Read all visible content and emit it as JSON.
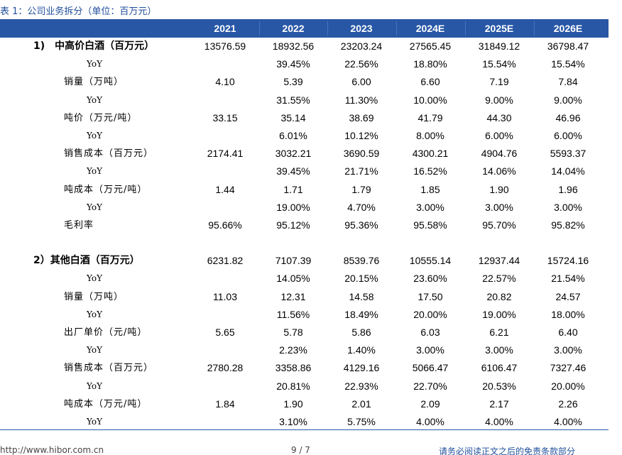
{
  "caption": "表 1：公司业务拆分（单位：百万元）",
  "columns": [
    "2021",
    "2022",
    "2023",
    "2024E",
    "2025E",
    "2026E"
  ],
  "rows": [
    {
      "label": "1)　中高价白酒（百万元）",
      "kind": "section",
      "values": [
        "13576.59",
        "18932.56",
        "23203.24",
        "27565.45",
        "31849.12",
        "36798.47"
      ]
    },
    {
      "label": "YoY",
      "kind": "yoy",
      "values": [
        "",
        "39.45%",
        "22.56%",
        "18.80%",
        "15.54%",
        "15.54%"
      ]
    },
    {
      "label": "销量（万吨）",
      "kind": "sub",
      "values": [
        "4.10",
        "5.39",
        "6.00",
        "6.60",
        "7.19",
        "7.84"
      ]
    },
    {
      "label": "YoY",
      "kind": "yoy",
      "values": [
        "",
        "31.55%",
        "11.30%",
        "10.00%",
        "9.00%",
        "9.00%"
      ]
    },
    {
      "label": "吨价（万元/吨）",
      "kind": "sub",
      "values": [
        "33.15",
        "35.14",
        "38.69",
        "41.79",
        "44.30",
        "46.96"
      ]
    },
    {
      "label": "YoY",
      "kind": "yoy",
      "values": [
        "",
        "6.01%",
        "10.12%",
        "8.00%",
        "6.00%",
        "6.00%"
      ]
    },
    {
      "label": "销售成本（百万元）",
      "kind": "sub",
      "values": [
        "2174.41",
        "3032.21",
        "3690.59",
        "4300.21",
        "4904.76",
        "5593.37"
      ]
    },
    {
      "label": "YoY",
      "kind": "yoy",
      "values": [
        "",
        "39.45%",
        "21.71%",
        "16.52%",
        "14.06%",
        "14.04%"
      ]
    },
    {
      "label": "吨成本（万元/吨）",
      "kind": "sub",
      "values": [
        "1.44",
        "1.71",
        "1.79",
        "1.85",
        "1.90",
        "1.96"
      ]
    },
    {
      "label": "YoY",
      "kind": "yoy",
      "values": [
        "",
        "19.00%",
        "4.70%",
        "3.00%",
        "3.00%",
        "3.00%"
      ]
    },
    {
      "label": "毛利率",
      "kind": "sub",
      "values": [
        "95.66%",
        "95.12%",
        "95.36%",
        "95.58%",
        "95.70%",
        "95.82%"
      ]
    },
    {
      "label": "",
      "kind": "blank",
      "values": []
    },
    {
      "label": "2）其他白酒（百万元）",
      "kind": "section",
      "values": [
        "6231.82",
        "7107.39",
        "8539.76",
        "10555.14",
        "12937.44",
        "15724.16"
      ]
    },
    {
      "label": "YoY",
      "kind": "yoy",
      "values": [
        "",
        "14.05%",
        "20.15%",
        "23.60%",
        "22.57%",
        "21.54%"
      ]
    },
    {
      "label": "销量（万吨）",
      "kind": "sub",
      "values": [
        "11.03",
        "12.31",
        "14.58",
        "17.50",
        "20.82",
        "24.57"
      ]
    },
    {
      "label": "YoY",
      "kind": "yoy",
      "values": [
        "",
        "11.56%",
        "18.49%",
        "20.00%",
        "19.00%",
        "18.00%"
      ]
    },
    {
      "label": "出厂单价（元/吨）",
      "kind": "sub",
      "values": [
        "5.65",
        "5.78",
        "5.86",
        "6.03",
        "6.21",
        "6.40"
      ]
    },
    {
      "label": "YoY",
      "kind": "yoy",
      "values": [
        "",
        "2.23%",
        "1.40%",
        "3.00%",
        "3.00%",
        "3.00%"
      ]
    },
    {
      "label": "销售成本（百万元）",
      "kind": "sub",
      "values": [
        "2780.28",
        "3358.86",
        "4129.16",
        "5066.47",
        "6106.47",
        "7327.46"
      ]
    },
    {
      "label": "YoY",
      "kind": "yoy",
      "values": [
        "",
        "20.81%",
        "22.93%",
        "22.70%",
        "20.53%",
        "20.00%"
      ]
    },
    {
      "label": "吨成本（万元/吨）",
      "kind": "sub",
      "values": [
        "1.84",
        "1.90",
        "2.01",
        "2.09",
        "2.17",
        "2.26"
      ]
    },
    {
      "label": "YoY",
      "kind": "yoy",
      "values": [
        "",
        "3.10%",
        "5.75%",
        "4.00%",
        "4.00%",
        "4.00%"
      ]
    }
  ],
  "footer": {
    "left": "http://www.hibor.com.cn",
    "page": "9 / 7",
    "right": "请务必阅读正文之后的免责条款部分"
  },
  "colors": {
    "header_bg": "#2857a6",
    "caption": "#1f4e9c"
  }
}
